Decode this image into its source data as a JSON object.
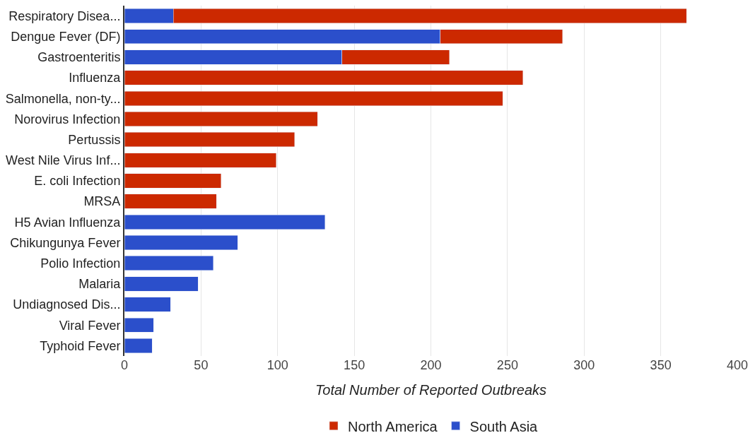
{
  "chart_data": {
    "type": "bar",
    "orientation": "horizontal",
    "stacked": true,
    "categories": [
      "Respiratory Disea...",
      "Dengue Fever (DF)",
      "Gastroenteritis",
      "Influenza",
      "Salmonella, non-ty...",
      "Norovirus Infection",
      "Pertussis",
      "West Nile Virus Inf...",
      "E. coli Infection",
      "MRSA",
      "H5 Avian Influenza",
      "Chikungunya Fever",
      "Polio Infection",
      "Malaria",
      "Undiagnosed Dis...",
      "Viral Fever",
      "Typhoid Fever"
    ],
    "series": [
      {
        "name": "South Asia",
        "color": "#2b4fcb",
        "values": [
          32,
          206,
          142,
          null,
          null,
          null,
          null,
          null,
          null,
          null,
          131,
          74,
          58,
          48,
          30,
          19,
          18
        ]
      },
      {
        "name": "North America",
        "color": "#cc2900",
        "values": [
          335,
          80,
          70,
          260,
          247,
          126,
          111,
          99,
          63,
          60,
          null,
          null,
          null,
          null,
          null,
          null,
          null
        ]
      }
    ],
    "xlabel": "Total Number of Reported Outbreaks",
    "xlim": [
      0,
      400
    ],
    "xticks": [
      0,
      50,
      100,
      150,
      200,
      250,
      300,
      350,
      400
    ],
    "grid": "x",
    "legend": "bottom"
  }
}
